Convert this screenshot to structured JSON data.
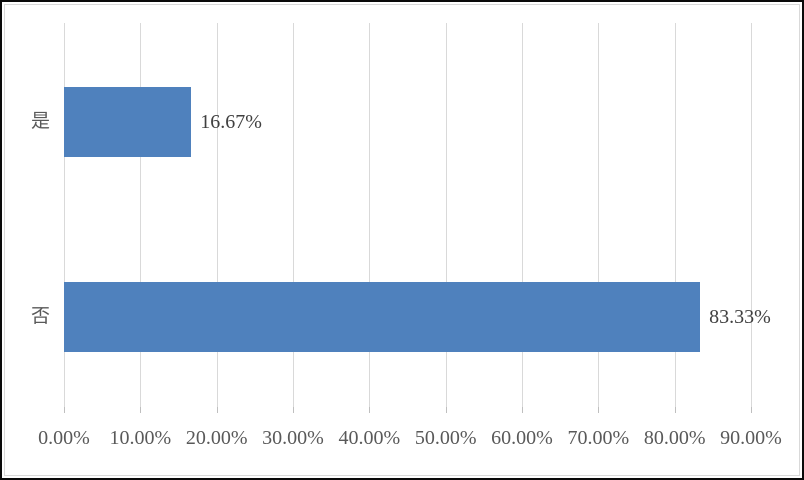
{
  "chart_data": {
    "type": "bar",
    "orientation": "horizontal",
    "title": "",
    "xlabel": "",
    "ylabel": "",
    "categories": [
      "是",
      "否"
    ],
    "values": [
      16.67,
      83.33
    ],
    "data_labels": [
      "16.67%",
      "83.33%"
    ],
    "x_ticks": [
      "0.00%",
      "10.00%",
      "20.00%",
      "30.00%",
      "40.00%",
      "50.00%",
      "60.00%",
      "70.00%",
      "80.00%",
      "90.00%"
    ],
    "x_tick_values": [
      0,
      10,
      20,
      30,
      40,
      50,
      60,
      70,
      80,
      90
    ],
    "xlim": [
      0,
      90
    ],
    "grid": "vertical",
    "legend": "none",
    "colors": {
      "bar_fill": "#4f81bd",
      "gridline": "#d9d9d9",
      "tick_mark": "#bfbfbf",
      "axis_label_text": "#595959",
      "data_label_text": "#404040",
      "chart_border": "#d9d9d9",
      "frame_border": "#0a0a0a",
      "background": "#ffffff"
    }
  }
}
